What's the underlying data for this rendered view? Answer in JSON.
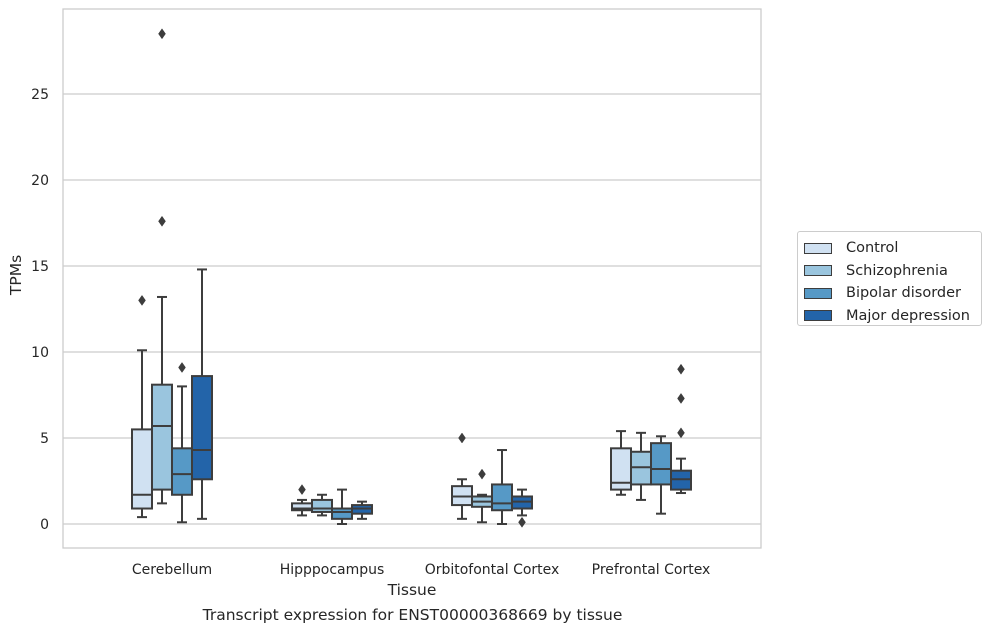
{
  "caption": "Transcript expression for ENST00000368669 by tissue",
  "chart_data": {
    "type": "box",
    "xlabel": "Tissue",
    "ylabel": "TPMs",
    "ylim": [
      -1.4,
      30
    ],
    "yticks": [
      0,
      5,
      10,
      15,
      20,
      25
    ],
    "grid": "horizontal",
    "legend_placement": "right",
    "categories": [
      "Cerebellum",
      "Hipppocampus",
      "Orbitofontal Cortex",
      "Prefrontal Cortex"
    ],
    "series": [
      {
        "name": "Control",
        "color": "#d0e1f2",
        "boxes": [
          {
            "whislo": 0.4,
            "q1": 0.9,
            "med": 1.7,
            "q3": 5.5,
            "whishi": 10.1,
            "fliers": [
              13.0
            ]
          },
          {
            "whislo": 0.5,
            "q1": 0.8,
            "med": 0.9,
            "q3": 1.2,
            "whishi": 1.4,
            "fliers": [
              2.0
            ]
          },
          {
            "whislo": 0.3,
            "q1": 1.1,
            "med": 1.6,
            "q3": 2.2,
            "whishi": 2.6,
            "fliers": [
              5.0
            ]
          },
          {
            "whislo": 1.7,
            "q1": 2.0,
            "med": 2.4,
            "q3": 4.4,
            "whishi": 5.4,
            "fliers": []
          }
        ]
      },
      {
        "name": "Schizophrenia",
        "color": "#9ac5de",
        "boxes": [
          {
            "whislo": 1.2,
            "q1": 2.0,
            "med": 5.7,
            "q3": 8.1,
            "whishi": 13.2,
            "fliers": [
              17.6,
              28.5
            ]
          },
          {
            "whislo": 0.5,
            "q1": 0.7,
            "med": 0.9,
            "q3": 1.4,
            "whishi": 1.7,
            "fliers": []
          },
          {
            "whislo": 0.1,
            "q1": 1.0,
            "med": 1.3,
            "q3": 1.6,
            "whishi": 1.7,
            "fliers": [
              2.9
            ]
          },
          {
            "whislo": 1.4,
            "q1": 2.3,
            "med": 3.3,
            "q3": 4.2,
            "whishi": 5.3,
            "fliers": []
          }
        ]
      },
      {
        "name": "Bipolar disorder",
        "color": "#5699c6",
        "boxes": [
          {
            "whislo": 0.1,
            "q1": 1.7,
            "med": 2.9,
            "q3": 4.4,
            "whishi": 8.0,
            "fliers": [
              9.1
            ]
          },
          {
            "whislo": 0.0,
            "q1": 0.3,
            "med": 0.7,
            "q3": 0.9,
            "whishi": 2.0,
            "fliers": []
          },
          {
            "whislo": 0.0,
            "q1": 0.8,
            "med": 1.2,
            "q3": 2.3,
            "whishi": 4.3,
            "fliers": []
          },
          {
            "whislo": 0.6,
            "q1": 2.3,
            "med": 3.2,
            "q3": 4.7,
            "whishi": 5.1,
            "fliers": []
          }
        ]
      },
      {
        "name": "Major depression",
        "color": "#2364a9",
        "boxes": [
          {
            "whislo": 0.3,
            "q1": 2.6,
            "med": 4.3,
            "q3": 8.6,
            "whishi": 14.8,
            "fliers": []
          },
          {
            "whislo": 0.3,
            "q1": 0.6,
            "med": 0.9,
            "q3": 1.1,
            "whishi": 1.3,
            "fliers": []
          },
          {
            "whislo": 0.5,
            "q1": 0.9,
            "med": 1.3,
            "q3": 1.6,
            "whishi": 2.0,
            "fliers": [
              0.1
            ]
          },
          {
            "whislo": 1.8,
            "q1": 2.0,
            "med": 2.6,
            "q3": 3.1,
            "whishi": 3.8,
            "fliers": [
              5.3,
              7.3,
              9.0
            ]
          }
        ]
      }
    ]
  }
}
